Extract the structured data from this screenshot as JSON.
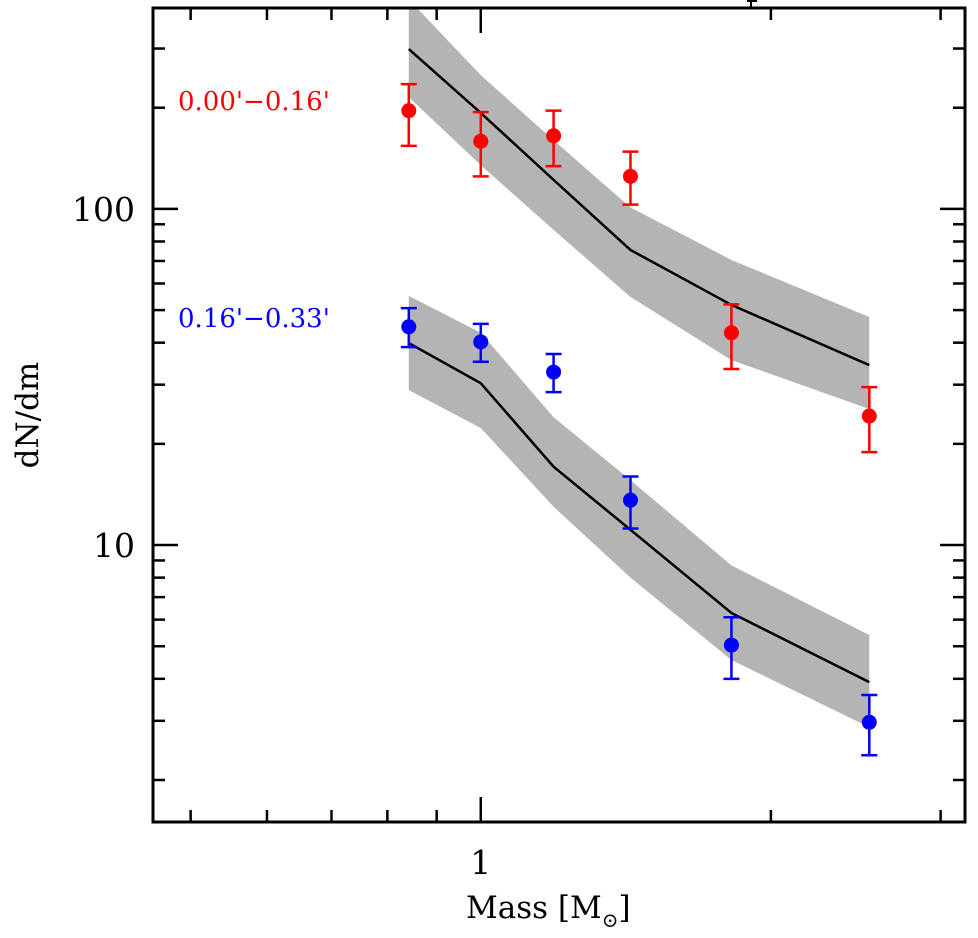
{
  "chart_data": {
    "type": "scatter",
    "title": "",
    "xlabel": "Mass [M",
    "xlabel_sub": "⊙",
    "xlabel_close": "]",
    "ylabel": "dN/dm",
    "xscale": "log",
    "yscale": "log",
    "xlim": [
      0.457,
      3.18
    ],
    "ylim": [
      1.5,
      396
    ],
    "x_major_ticks": [
      {
        "value": 1,
        "label": "1"
      }
    ],
    "x_minor_ticks": [
      0.5,
      0.6,
      0.7,
      0.8,
      0.9,
      2,
      3
    ],
    "y_major_ticks": [
      {
        "value": 10,
        "label": "10"
      },
      {
        "value": 100,
        "label": "100"
      }
    ],
    "y_minor_ticks": [
      2,
      3,
      4,
      5,
      6,
      7,
      8,
      9,
      20,
      30,
      40,
      50,
      60,
      70,
      80,
      90,
      200,
      300
    ],
    "grid": false,
    "series": [
      {
        "name": "0.00'−0.16'",
        "color": "#ff0000",
        "legend_position": "upper-left",
        "points": [
          {
            "x": 0.842,
            "y": 196,
            "ylow": 154,
            "yhigh": 235
          },
          {
            "x": 1.0,
            "y": 159,
            "ylow": 125,
            "yhigh": 194
          },
          {
            "x": 1.19,
            "y": 165,
            "ylow": 134,
            "yhigh": 196
          },
          {
            "x": 1.43,
            "y": 125,
            "ylow": 103,
            "yhigh": 148
          },
          {
            "x": 1.82,
            "y": 42.8,
            "ylow": 33.4,
            "yhigh": 52
          },
          {
            "x": 2.53,
            "y": 24.2,
            "ylow": 18.9,
            "yhigh": 29.5
          }
        ],
        "model": {
          "x": [
            0.842,
            1.0,
            1.19,
            1.43,
            1.82,
            2.53
          ],
          "y": [
            299,
            193,
            122,
            75.5,
            51.8,
            34.3
          ],
          "band_low": [
            215,
            135,
            86.6,
            54.7,
            35.5,
            25.4
          ],
          "band_high": [
            420,
            250,
            160,
            101,
            70.5,
            47.7
          ]
        }
      },
      {
        "name": "0.16'−0.33'",
        "color": "#0000ff",
        "legend_position": "middle-left",
        "points": [
          {
            "x": 0.842,
            "y": 44.6,
            "ylow": 38.8,
            "yhigh": 50.7
          },
          {
            "x": 1.0,
            "y": 40.2,
            "ylow": 35.1,
            "yhigh": 45.5
          },
          {
            "x": 1.19,
            "y": 32.7,
            "ylow": 28.5,
            "yhigh": 37.0
          },
          {
            "x": 1.43,
            "y": 13.6,
            "ylow": 11.2,
            "yhigh": 16.0
          },
          {
            "x": 1.82,
            "y": 5.04,
            "ylow": 4.0,
            "yhigh": 6.1
          },
          {
            "x": 2.53,
            "y": 2.97,
            "ylow": 2.37,
            "yhigh": 3.58
          }
        ],
        "model": {
          "x": [
            0.842,
            1.0,
            1.19,
            1.43,
            1.82,
            2.53
          ],
          "y": [
            39.9,
            30.3,
            17.1,
            11.1,
            6.28,
            3.91
          ],
          "band_low": [
            28.9,
            22.3,
            13.0,
            8.0,
            4.55,
            2.87
          ],
          "band_high": [
            55.1,
            42.8,
            24.0,
            15.6,
            8.7,
            5.4
          ]
        }
      }
    ],
    "band_color": "#b4b4b4",
    "model_line_color": "#000000"
  }
}
